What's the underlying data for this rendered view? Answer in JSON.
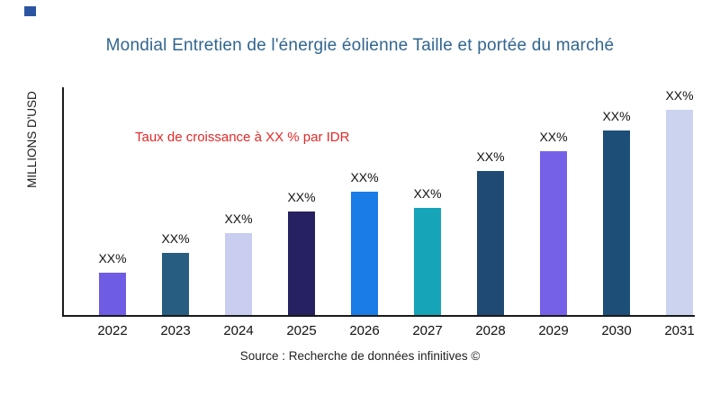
{
  "brand": {
    "color": "#2b55a0"
  },
  "header": {
    "title": "Mondial Entretien de l'énergie éolienne Taille et portée du marché",
    "color": "#31658f"
  },
  "annotation": {
    "text": "Taux de croissance à XX % par IDR",
    "color": "#e42a28"
  },
  "axes": {
    "y_label": "MILLIONS D'USD",
    "axis_color": "#1a1a1a"
  },
  "footer": {
    "source": "Source : Recherche de données infinitives ©"
  },
  "chart_data": {
    "type": "bar",
    "title": "Mondial Entretien de l'énergie éolienne Taille et portée du marché",
    "xlabel": "",
    "ylabel": "MILLIONS D'USD",
    "categories": [
      "2022",
      "2023",
      "2024",
      "2025",
      "2026",
      "2027",
      "2028",
      "2029",
      "2030",
      "2031"
    ],
    "values": [
      47,
      69,
      91,
      115,
      137,
      119,
      160,
      182,
      205,
      228
    ],
    "bar_labels": [
      "XX%",
      "XX%",
      "XX%",
      "XX%",
      "XX%",
      "XX%",
      "XX%",
      "XX%",
      "XX%",
      "XX%"
    ],
    "bar_colors": [
      "#6f5ce4",
      "#265d80",
      "#c9cdf0",
      "#262261",
      "#1a7ce6",
      "#15a4b8",
      "#1f4a73",
      "#7561e8",
      "#1d4e78",
      "#ccd3ef"
    ],
    "ylim": [
      0,
      253
    ],
    "grid": false,
    "legend": "none",
    "value_axis_tick_labels": "none",
    "annotation": "Taux de croissance à XX % par IDR"
  }
}
